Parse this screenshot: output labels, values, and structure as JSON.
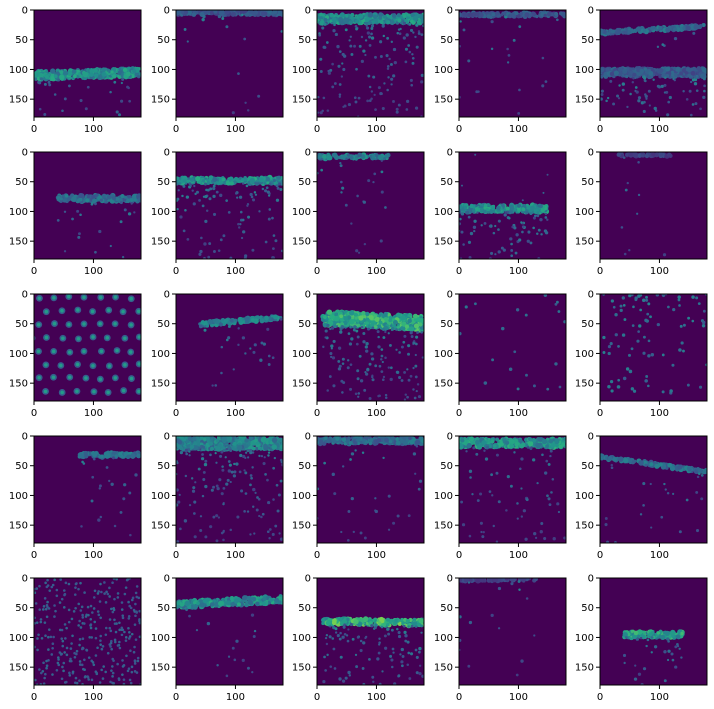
{
  "chart_data": {
    "type": "heatmap",
    "colormap": "viridis",
    "background_color": "#440154",
    "rows": 5,
    "cols": 5,
    "image_extent": [
      0,
      180
    ],
    "xticks": [
      0,
      100
    ],
    "yticks": [
      0,
      50,
      100,
      150
    ],
    "xlabel": "",
    "ylabel": "",
    "panels": [
      {
        "pattern": "band",
        "band_y": 110,
        "band_slope": -0.03,
        "band_thickness": 14,
        "band_intensity": 0.62,
        "below_density": 0.1,
        "above_density": 0.0
      },
      {
        "pattern": "band",
        "band_y": 5,
        "band_slope": 0,
        "band_thickness": 6,
        "band_intensity": 0.35,
        "below_density": 0.06,
        "above_density": 0.0
      },
      {
        "pattern": "band",
        "band_y": 15,
        "band_slope": 0,
        "band_thickness": 14,
        "band_intensity": 0.62,
        "below_density": 0.55,
        "above_density": 0.0
      },
      {
        "pattern": "band",
        "band_y": 8,
        "band_slope": 0,
        "band_thickness": 6,
        "band_intensity": 0.35,
        "below_density": 0.08,
        "above_density": 0.0
      },
      {
        "pattern": "two_bands",
        "band_y": 38,
        "band_slope": -0.06,
        "band_thickness": 6,
        "band_intensity": 0.45,
        "band2_y": 105,
        "band2_thickness": 14,
        "below_density": 0.25,
        "above_density": 0.0
      },
      {
        "pattern": "band",
        "band_y": 78,
        "band_slope": 0,
        "band_thickness": 10,
        "band_intensity": 0.45,
        "x_start": 40,
        "below_density": 0.08,
        "above_density": 0.0
      },
      {
        "pattern": "band",
        "band_y": 48,
        "band_slope": 0,
        "band_thickness": 10,
        "band_intensity": 0.62,
        "below_density": 0.4,
        "above_density": 0.0
      },
      {
        "pattern": "band",
        "band_y": 8,
        "band_slope": 0,
        "band_thickness": 6,
        "band_intensity": 0.55,
        "x_end": 120,
        "below_density": 0.1,
        "above_density": 0.0
      },
      {
        "pattern": "band",
        "band_y": 95,
        "band_slope": 0,
        "band_thickness": 12,
        "band_intensity": 0.62,
        "x_start": 0,
        "x_end": 150,
        "below_density": 0.3,
        "above_density": 0.02
      },
      {
        "pattern": "band",
        "band_y": 5,
        "band_slope": 0,
        "band_thickness": 4,
        "band_intensity": 0.25,
        "x_start": 30,
        "x_end": 120,
        "below_density": 0.04,
        "above_density": 0.0
      },
      {
        "pattern": "lattice",
        "spacing": 26,
        "spot_intensity": 0.55
      },
      {
        "pattern": "band",
        "band_y": 55,
        "band_slope": -0.09,
        "band_thickness": 7,
        "band_intensity": 0.55,
        "x_start": 40,
        "below_density": 0.1,
        "above_density": 0.0
      },
      {
        "pattern": "band",
        "band_y": 40,
        "band_slope": 0.05,
        "band_thickness": 24,
        "band_intensity": 0.75,
        "x_start": 10,
        "below_density": 0.55,
        "above_density": 0.0
      },
      {
        "pattern": "scatter",
        "density": 0.07,
        "top_bias": 0.5,
        "spot_intensity": 0.4
      },
      {
        "pattern": "scatter",
        "density": 0.3,
        "top_bias": 0.6,
        "spot_intensity": 0.45
      },
      {
        "pattern": "band",
        "band_y": 32,
        "band_slope": 0,
        "band_thickness": 7,
        "band_intensity": 0.5,
        "x_start": 75,
        "below_density": 0.08,
        "above_density": 0.0
      },
      {
        "pattern": "band",
        "band_y": 12,
        "band_slope": 0,
        "band_thickness": 20,
        "band_intensity": 0.55,
        "below_density": 0.55,
        "above_density": 0.0
      },
      {
        "pattern": "band",
        "band_y": 8,
        "band_slope": 0,
        "band_thickness": 10,
        "band_intensity": 0.45,
        "below_density": 0.12,
        "above_density": 0.0
      },
      {
        "pattern": "band",
        "band_y": 12,
        "band_slope": 0,
        "band_thickness": 14,
        "band_intensity": 0.65,
        "below_density": 0.25,
        "above_density": 0.0
      },
      {
        "pattern": "band",
        "band_y": 35,
        "band_slope": 0.14,
        "band_thickness": 6,
        "band_intensity": 0.45,
        "below_density": 0.1,
        "above_density": 0.0
      },
      {
        "pattern": "diagonal",
        "density": 0.7,
        "spot_intensity": 0.35
      },
      {
        "pattern": "band",
        "band_y": 45,
        "band_slope": -0.05,
        "band_thickness": 12,
        "band_intensity": 0.62,
        "x_start": 0,
        "below_density": 0.06,
        "above_density": 0.0
      },
      {
        "pattern": "band",
        "band_y": 72,
        "band_slope": 0.02,
        "band_thickness": 10,
        "band_intensity": 0.8,
        "x_start": 10,
        "below_density": 0.4,
        "above_density": 0.0
      },
      {
        "pattern": "band",
        "band_y": 3,
        "band_slope": 0,
        "band_thickness": 4,
        "band_intensity": 0.25,
        "x_end": 130,
        "below_density": 0.06,
        "above_density": 0.0
      },
      {
        "pattern": "band",
        "band_y": 95,
        "band_slope": 0,
        "band_thickness": 10,
        "band_intensity": 0.7,
        "x_start": 40,
        "x_end": 140,
        "below_density": 0.12,
        "above_density": 0.0
      }
    ]
  }
}
